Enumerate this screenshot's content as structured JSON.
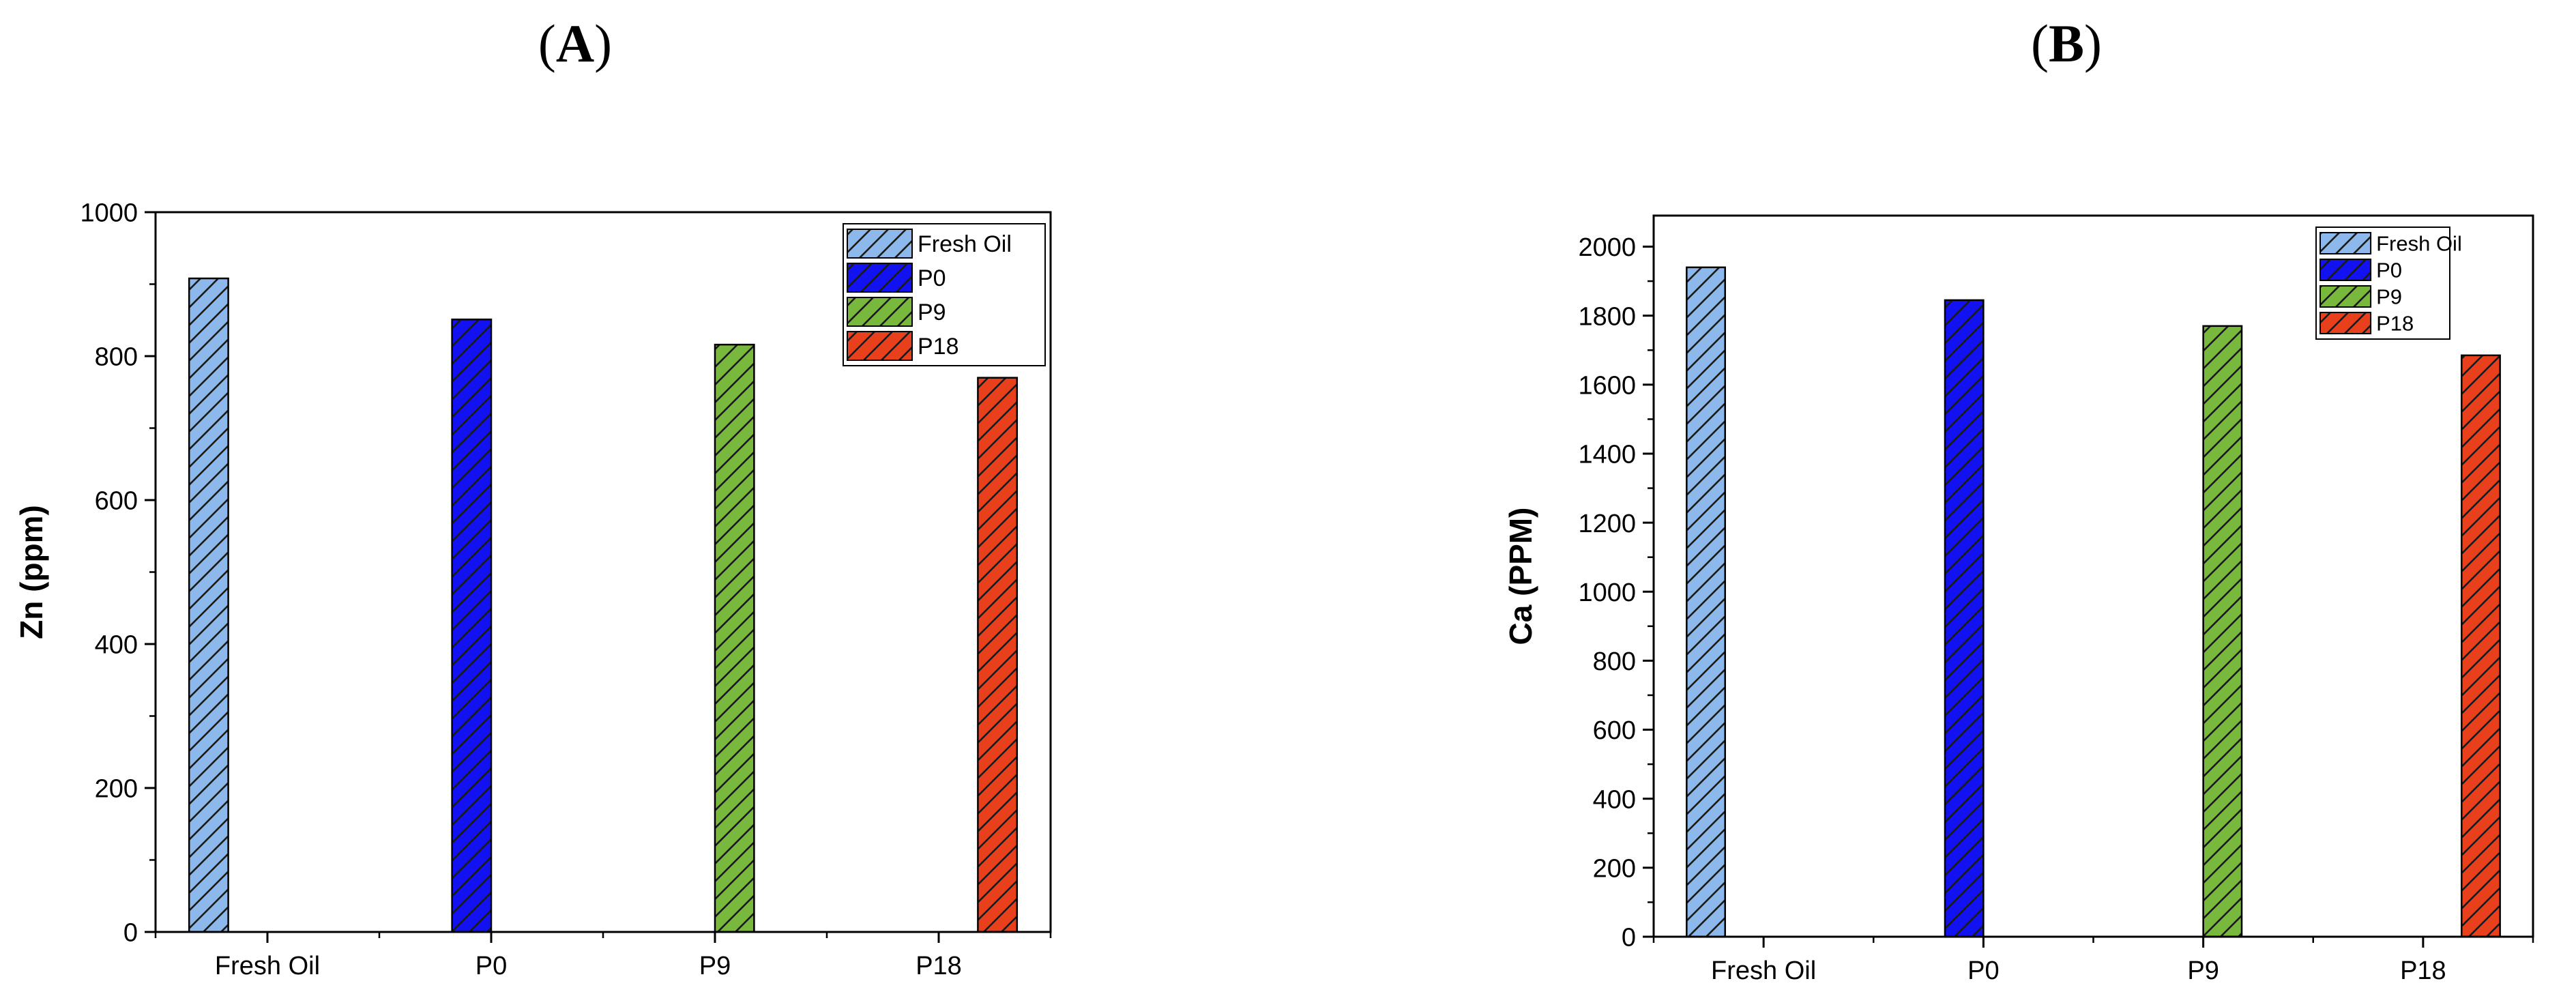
{
  "panels": [
    {
      "label": "A"
    },
    {
      "label": "B"
    }
  ],
  "colors": {
    "Fresh Oil": "#8db8ec",
    "P0": "#1212f0",
    "P9": "#78b83c",
    "P18": "#e8401c"
  },
  "chart_data": [
    {
      "type": "bar",
      "categories": [
        "Fresh Oil",
        "P0",
        "P9",
        "P18"
      ],
      "series": [
        {
          "name": "Fresh Oil",
          "values": [
            908,
            null,
            null,
            null
          ]
        },
        {
          "name": "P0",
          "values": [
            null,
            851,
            null,
            null
          ]
        },
        {
          "name": "P9",
          "values": [
            null,
            null,
            816,
            null
          ]
        },
        {
          "name": "P18",
          "values": [
            null,
            null,
            null,
            770
          ]
        }
      ],
      "title": "",
      "xlabel": "",
      "ylabel": "Zn (ppm)",
      "ylim": [
        0,
        1000
      ],
      "yticks": [
        0,
        200,
        400,
        600,
        800,
        1000
      ],
      "grid": false,
      "legend": "top-right",
      "pattern": "diagonal-hatch"
    },
    {
      "type": "bar",
      "categories": [
        "Fresh Oil",
        "P0",
        "P9",
        "P18"
      ],
      "series": [
        {
          "name": "Fresh Oil",
          "values": [
            1940,
            null,
            null,
            null
          ]
        },
        {
          "name": "P0",
          "values": [
            null,
            1845,
            null,
            null
          ]
        },
        {
          "name": "P9",
          "values": [
            null,
            null,
            1770,
            null
          ]
        },
        {
          "name": "P18",
          "values": [
            null,
            null,
            null,
            1685
          ]
        }
      ],
      "title": "",
      "xlabel": "",
      "ylabel": "Ca (PPM)",
      "ylim": [
        0,
        2090
      ],
      "yticks": [
        0,
        200,
        400,
        600,
        800,
        1000,
        1200,
        1400,
        1600,
        1800,
        2000
      ],
      "grid": false,
      "legend": "top-right",
      "pattern": "diagonal-hatch"
    }
  ]
}
